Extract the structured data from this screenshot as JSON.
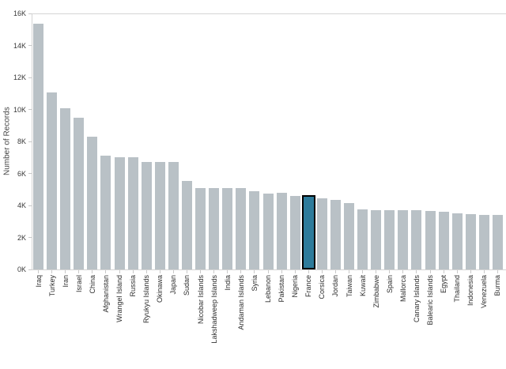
{
  "chart_data": {
    "type": "bar",
    "ylabel": "Number of Records",
    "xlabel": "",
    "ylim": [
      0,
      16000
    ],
    "ytick_labels": [
      "0K",
      "2K",
      "4K",
      "6K",
      "8K",
      "10K",
      "12K",
      "14K",
      "16K"
    ],
    "grid": false,
    "legend": false,
    "categories": [
      "Iraq",
      "Turkey",
      "Iran",
      "Israel",
      "China",
      "Afghanistan",
      "Wrangel Island",
      "Russia",
      "Ryukyu Islands",
      "Okinawa",
      "Japan",
      "Sudan",
      "Nicobar Islands",
      "Lakshadweep Islands",
      "India",
      "Andaman Islands",
      "Syria",
      "Lebanon",
      "Pakistan",
      "Nigeria",
      "France",
      "Corsica",
      "Jordan",
      "Taiwan",
      "Kuwait",
      "Zimbabwe",
      "Spain",
      "Mallorca",
      "Canary Islands",
      "Balearic Islands",
      "Egypt",
      "Thailand",
      "Indonesia",
      "Venezuela",
      "Burma"
    ],
    "values": [
      15350,
      11050,
      10050,
      9500,
      8300,
      7100,
      7000,
      7000,
      6700,
      6700,
      6700,
      5550,
      5100,
      5100,
      5100,
      5100,
      4900,
      4750,
      4800,
      4600,
      4550,
      4450,
      4350,
      4150,
      3750,
      3700,
      3700,
      3700,
      3700,
      3650,
      3600,
      3500,
      3450,
      3400,
      3400
    ],
    "highlighted_category": "France",
    "colors": {
      "bar": "#b9c1c6",
      "highlight_fill": "#2d7b9b",
      "highlight_border": "#000000",
      "axis": "#d4d4d4",
      "tick_text": "#383838",
      "background": "#ffffff"
    }
  }
}
